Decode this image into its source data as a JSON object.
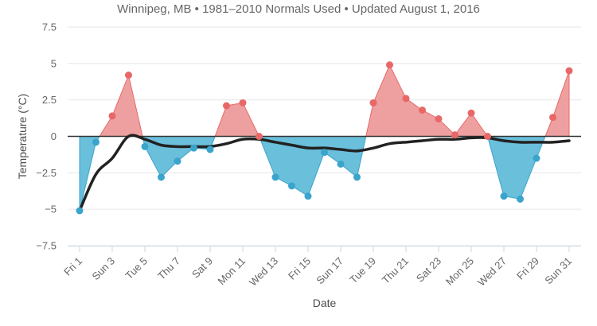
{
  "chart_data": {
    "type": "area",
    "subtitle": "Winnipeg, MB • 1981–2010 Normals Used • Updated August 1, 2016",
    "xlabel": "Date",
    "ylabel": "Temperature (°C)",
    "ylim": [
      -7.5,
      7.5
    ],
    "yticks": [
      7.5,
      5,
      2.5,
      0,
      -2.5,
      -5,
      -7.5
    ],
    "ytick_labels": [
      "7.5",
      "5",
      "2.5",
      "0",
      "−2.5",
      "−5",
      "−7.5"
    ],
    "x": [
      1,
      2,
      3,
      4,
      5,
      6,
      7,
      8,
      9,
      10,
      11,
      12,
      13,
      14,
      15,
      16,
      17,
      18,
      19,
      20,
      21,
      22,
      23,
      24,
      25,
      26,
      27,
      28,
      29,
      30,
      31
    ],
    "xtick_positions": [
      1,
      3,
      5,
      7,
      9,
      11,
      13,
      15,
      17,
      19,
      21,
      23,
      25,
      27,
      29,
      31
    ],
    "xtick_labels": [
      "Fri 1",
      "Sun 3",
      "Tue 5",
      "Thu 7",
      "Sat 9",
      "Mon 11",
      "Wed 13",
      "Fri 15",
      "Sun 17",
      "Tue 19",
      "Thu 21",
      "Sat 23",
      "Mon 25",
      "Wed 27",
      "Fri 29",
      "Sun 31"
    ],
    "series": [
      {
        "name": "",
        "kind": "anomaly",
        "values": [
          -5.1,
          -0.4,
          1.4,
          4.2,
          -0.7,
          -2.8,
          -1.7,
          -0.8,
          -0.9,
          2.1,
          2.3,
          0.0,
          -2.8,
          -3.4,
          -4.1,
          -1.1,
          -1.9,
          -2.8,
          2.3,
          4.9,
          2.6,
          1.8,
          1.2,
          0.1,
          1.6,
          0.0,
          -4.1,
          -4.3,
          -1.5,
          1.3,
          4.5
        ]
      },
      {
        "name": "",
        "kind": "trend",
        "values": [
          -5.1,
          -2.6,
          -1.5,
          0.0,
          -0.2,
          -0.6,
          -0.7,
          -0.7,
          -0.7,
          -0.5,
          -0.2,
          -0.2,
          -0.4,
          -0.6,
          -0.8,
          -0.8,
          -0.9,
          -1.0,
          -0.8,
          -0.5,
          -0.4,
          -0.3,
          -0.2,
          -0.2,
          -0.1,
          -0.1,
          -0.3,
          -0.4,
          -0.4,
          -0.4,
          -0.3
        ]
      }
    ],
    "colors": {
      "positive_fill": "#eb8f8f",
      "positive_marker": "#e86868",
      "negative_fill": "#62bcd9",
      "negative_marker": "#3aa4cc",
      "trend_line": "#222222",
      "zero_line": "#333333",
      "grid": "#e6e6e6"
    },
    "grid": true,
    "legend": "none"
  }
}
